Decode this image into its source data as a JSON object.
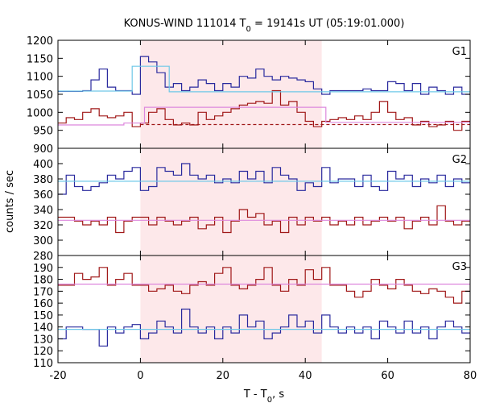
{
  "chart_data": {
    "type": "line",
    "title": "KONUS-WIND 111014 T",
    "title_sub": "0",
    "title_rest": " = 19141s UT (05:19:01.000)",
    "xlabel": "T - T",
    "xlabel_sub": "0",
    "xlabel_rest": ", s",
    "ylabel": "counts / sec",
    "xlim": [
      -20,
      80
    ],
    "x_ticks": [
      -20,
      0,
      20,
      40,
      60,
      80
    ],
    "shaded_region": {
      "x": [
        0,
        44
      ],
      "color": "#fde8ea"
    },
    "bin_edges": [
      -20,
      -18,
      -16,
      -14,
      -12,
      -10,
      -8,
      -6,
      -4,
      -2,
      0,
      2,
      4,
      6,
      8,
      10,
      12,
      14,
      16,
      18,
      20,
      22,
      24,
      26,
      28,
      30,
      32,
      34,
      36,
      38,
      40,
      42,
      44,
      46,
      48,
      50,
      52,
      54,
      56,
      58,
      60,
      62,
      64,
      66,
      68,
      70,
      72,
      74,
      76,
      78,
      80
    ],
    "panels": [
      {
        "label": "G1",
        "ylim": [
          900,
          1200
        ],
        "y_ticks": [
          900,
          950,
          1000,
          1050,
          1100,
          1150,
          1200
        ],
        "series": [
          {
            "color": "#2a2a9e",
            "values": [
              1058,
              1058,
              1058,
              1060,
              1090,
              1120,
              1070,
              1060,
              1060,
              1050,
              1155,
              1140,
              1110,
              1070,
              1080,
              1060,
              1070,
              1090,
              1080,
              1060,
              1080,
              1070,
              1100,
              1095,
              1120,
              1100,
              1090,
              1100,
              1095,
              1090,
              1085,
              1065,
              1050,
              1060,
              1060,
              1060,
              1060,
              1065,
              1060,
              1060,
              1085,
              1080,
              1060,
              1080,
              1050,
              1070,
              1060,
              1050,
              1070,
              1050
            ]
          },
          {
            "color": "#a01818",
            "values": [
              970,
              985,
              980,
              1000,
              1010,
              990,
              985,
              990,
              1000,
              960,
              970,
              1000,
              1010,
              980,
              965,
              970,
              965,
              1000,
              980,
              990,
              1000,
              1010,
              1020,
              1025,
              1030,
              1025,
              1060,
              1020,
              1030,
              1000,
              975,
              960,
              975,
              980,
              985,
              980,
              990,
              980,
              1000,
              1030,
              1000,
              980,
              985,
              965,
              975,
              960,
              965,
              975,
              950,
              975
            ]
          },
          {
            "color": "#6fc8e8",
            "step": [
              [
                -20,
                1059
              ],
              [
                -2,
                1059
              ],
              [
                -2,
                1128
              ],
              [
                7,
                1128
              ],
              [
                7,
                1057
              ],
              [
                80,
                1057
              ]
            ]
          },
          {
            "color": "#dd88dd",
            "step": [
              [
                -20,
                965
              ],
              [
                -4,
                965
              ],
              [
                -4,
                970
              ],
              [
                1,
                970
              ],
              [
                1,
                1014
              ],
              [
                45,
                1014
              ],
              [
                45,
                972
              ],
              [
                80,
                972
              ]
            ]
          },
          {
            "color": "#a01818",
            "dashed": true,
            "step": [
              [
                0,
                966
              ],
              [
                80,
                966
              ]
            ]
          }
        ]
      },
      {
        "label": "G2",
        "ylim": [
          280,
          420
        ],
        "y_ticks": [
          280,
          300,
          320,
          340,
          360,
          380,
          400
        ],
        "series": [
          {
            "color": "#2a2a9e",
            "values": [
              360,
              385,
              370,
              365,
              370,
              375,
              385,
              380,
              390,
              395,
              365,
              370,
              395,
              390,
              385,
              400,
              385,
              380,
              385,
              375,
              380,
              375,
              390,
              380,
              390,
              375,
              395,
              385,
              380,
              365,
              375,
              370,
              395,
              375,
              380,
              380,
              370,
              385,
              370,
              365,
              390,
              380,
              385,
              370,
              380,
              375,
              385,
              370,
              380,
              375
            ]
          },
          {
            "color": "#a01818",
            "values": [
              330,
              330,
              325,
              320,
              325,
              320,
              330,
              310,
              325,
              330,
              330,
              320,
              330,
              325,
              320,
              325,
              330,
              315,
              320,
              330,
              310,
              325,
              340,
              330,
              335,
              320,
              325,
              310,
              330,
              320,
              330,
              325,
              330,
              320,
              325,
              320,
              330,
              320,
              325,
              330,
              325,
              330,
              315,
              325,
              330,
              320,
              345,
              325,
              320,
              325
            ]
          },
          {
            "color": "#6fc8e8",
            "step": [
              [
                -20,
                377
              ],
              [
                80,
                377
              ]
            ]
          },
          {
            "color": "#dd88dd",
            "step": [
              [
                -20,
                326
              ],
              [
                80,
                326
              ]
            ]
          }
        ]
      },
      {
        "label": "G3",
        "ylim": [
          110,
          200
        ],
        "y_ticks": [
          110,
          120,
          130,
          140,
          150,
          160,
          170,
          180,
          190
        ],
        "series": [
          {
            "color": "#a01818",
            "values": [
              175,
              175,
              185,
              180,
              182,
              190,
              175,
              180,
              185,
              175,
              175,
              170,
              172,
              175,
              170,
              168,
              175,
              178,
              175,
              185,
              190,
              175,
              172,
              175,
              180,
              190,
              175,
              170,
              180,
              175,
              188,
              180,
              190,
              175,
              175,
              170,
              165,
              170,
              180,
              175,
              172,
              180,
              175,
              170,
              168,
              172,
              170,
              165,
              160,
              170
            ]
          },
          {
            "color": "#2a2a9e",
            "values": [
              130,
              140,
              140,
              138,
              138,
              124,
              140,
              135,
              140,
              142,
              130,
              135,
              145,
              140,
              135,
              155,
              140,
              135,
              140,
              130,
              140,
              135,
              150,
              140,
              145,
              130,
              135,
              140,
              150,
              140,
              145,
              135,
              150,
              140,
              135,
              140,
              135,
              140,
              130,
              145,
              140,
              135,
              145,
              135,
              140,
              130,
              140,
              145,
              140,
              135
            ]
          },
          {
            "color": "#6fc8e8",
            "step": [
              [
                -20,
                138
              ],
              [
                80,
                138
              ]
            ]
          },
          {
            "color": "#dd88dd",
            "step": [
              [
                -20,
                176
              ],
              [
                80,
                176
              ]
            ]
          }
        ]
      }
    ]
  }
}
